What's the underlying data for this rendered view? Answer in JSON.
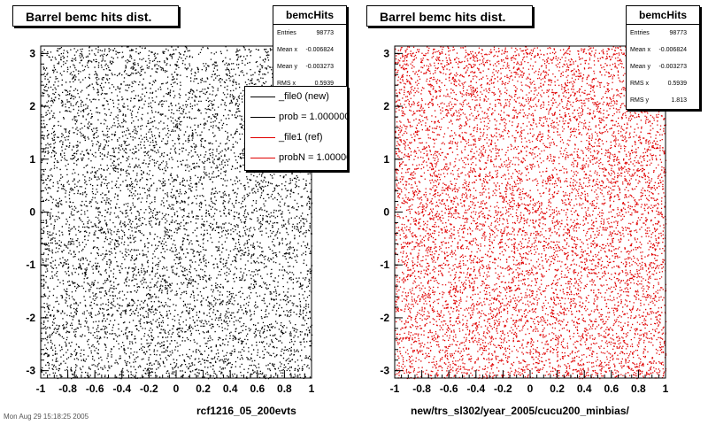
{
  "colors": {
    "left_points": "#000000",
    "right_points": "#e00000",
    "background": "#ffffff"
  },
  "left": {
    "title": "Barrel bemc hits dist.",
    "xlabel": "rcf1216_05_200evts",
    "stats": {
      "name": "bemcHits",
      "rows": [
        {
          "key": "Entries",
          "value": "98773"
        },
        {
          "key": "Mean x",
          "value": "-0.006824"
        },
        {
          "key": "Mean y",
          "value": "-0.003273"
        },
        {
          "key": "RMS x",
          "value": "0.5939"
        }
      ]
    },
    "legend": [
      {
        "label": "_file0 (new)",
        "color": "#000000"
      },
      {
        "label": "prob = 1.000000",
        "color": "#000000"
      },
      {
        "label": "_file1 (ref)",
        "color": "#e00000"
      },
      {
        "label": "probN = 1.000000",
        "color": "#e00000"
      }
    ]
  },
  "right": {
    "title": "Barrel bemc hits dist.",
    "xlabel": "new/trs_sl302/year_2005/cucu200_minbias/",
    "stats": {
      "name": "bemcHits",
      "rows": [
        {
          "key": "Entries",
          "value": "98773"
        },
        {
          "key": "Mean x",
          "value": "-0.006824"
        },
        {
          "key": "Mean y",
          "value": "-0.003273"
        },
        {
          "key": "RMS x",
          "value": "0.5939"
        },
        {
          "key": "RMS y",
          "value": "1.813"
        }
      ]
    }
  },
  "footer_text": "Mon Aug 29 15:18:25 2005",
  "chart_data": [
    {
      "type": "scatter",
      "title": "Barrel bemc hits dist.",
      "xlabel": "rcf1216_05_200evts",
      "ylabel": "",
      "xlim": [
        -1,
        1
      ],
      "ylim": [
        -3.14,
        3.14
      ],
      "xticks": [
        "-1",
        "-0.8",
        "-0.6",
        "-0.4",
        "-0.2",
        "0",
        "0.2",
        "0.4",
        "0.6",
        "0.8",
        "1"
      ],
      "yticks": [
        "-3",
        "-2",
        "-1",
        "0",
        "1",
        "2",
        "3"
      ],
      "series": [
        {
          "name": "bemcHits",
          "color": "#000000",
          "entries": 98773,
          "mean_x": -0.006824,
          "mean_y": -0.003273,
          "rms_x": 0.5939,
          "distribution": "uniform"
        }
      ]
    },
    {
      "type": "scatter",
      "title": "Barrel bemc hits dist.",
      "xlabel": "new/trs_sl302/year_2005/cucu200_minbias/",
      "ylabel": "",
      "xlim": [
        -1,
        1
      ],
      "ylim": [
        -3.14,
        3.14
      ],
      "xticks": [
        "-1",
        "-0.8",
        "-0.6",
        "-0.4",
        "-0.2",
        "0",
        "0.2",
        "0.4",
        "0.6",
        "0.8",
        "1"
      ],
      "yticks": [
        "-3",
        "-2",
        "-1",
        "0",
        "1",
        "2",
        "3"
      ],
      "series": [
        {
          "name": "bemcHits",
          "color": "#e00000",
          "entries": 98773,
          "mean_x": -0.006824,
          "mean_y": -0.003273,
          "rms_x": 0.5939,
          "rms_y": 1.813,
          "distribution": "uniform"
        }
      ]
    }
  ]
}
